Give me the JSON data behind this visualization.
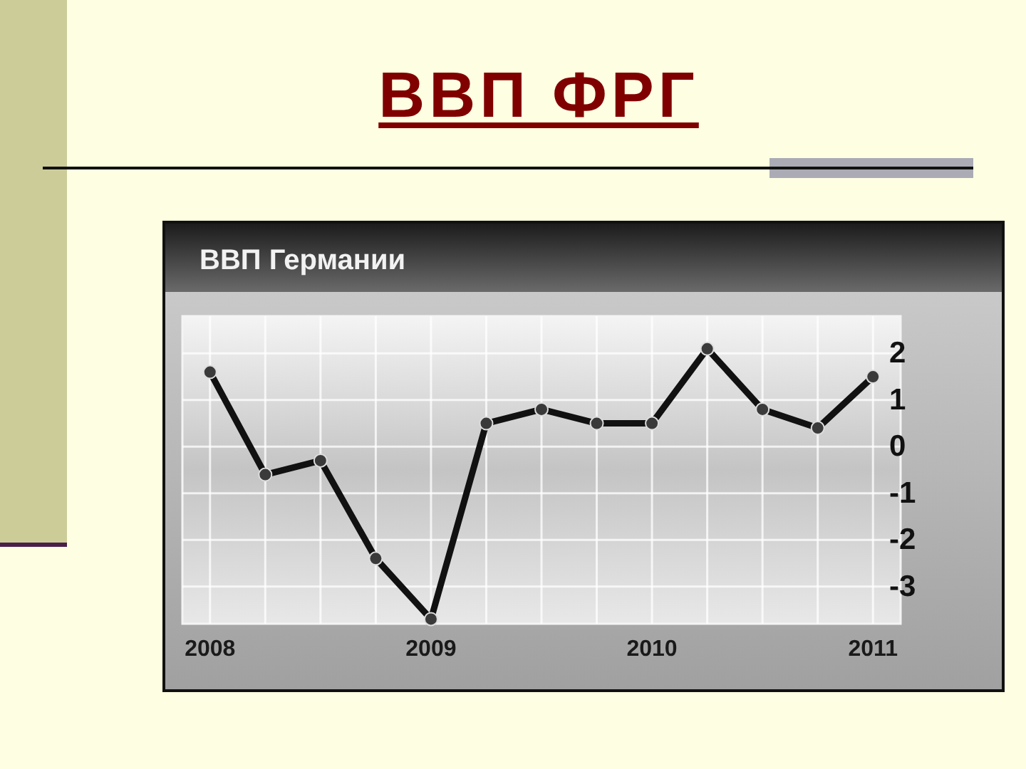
{
  "chart_data": {
    "type": "line",
    "title": "ВВП ФРГ",
    "subtitle": "ВВП Германии",
    "categories": [
      "2008",
      null,
      null,
      null,
      "2009",
      null,
      null,
      null,
      "2010",
      null,
      null,
      null,
      "2011"
    ],
    "series": [
      {
        "color": "#111111",
        "values": [
          1.6,
          -0.6,
          -0.3,
          -2.4,
          -3.7,
          0.5,
          0.8,
          0.5,
          0.5,
          2.1,
          0.8,
          0.4,
          1.5
        ]
      }
    ],
    "ylim": [
      -3.8,
      2.8
    ],
    "yticks": [
      2,
      1,
      0,
      -1,
      -2,
      -3
    ],
    "grid": true,
    "marker": "circle"
  }
}
